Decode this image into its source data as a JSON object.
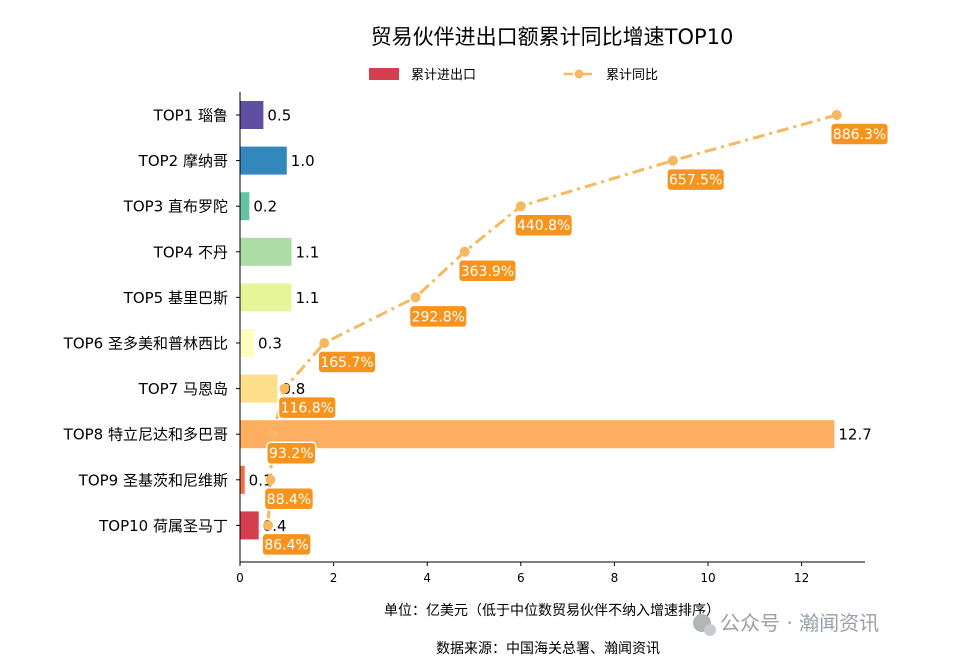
{
  "chart_data": {
    "type": "bar",
    "title": "贸易伙伴进出口额累计同比增速TOP10",
    "legend": [
      "累计进出口",
      "累计同比"
    ],
    "legend_position": "top-center",
    "categories": [
      "TOP1 瑙鲁",
      "TOP2 摩纳哥",
      "TOP3 直布罗陀",
      "TOP4 不丹",
      "TOP5 基里巴斯",
      "TOP6 圣多美和普林西比",
      "TOP7 马恩岛",
      "TOP8 特立尼达和多巴哥",
      "TOP9 圣基茨和尼维斯",
      "TOP10 荷属圣马丁"
    ],
    "series": [
      {
        "name": "累计进出口",
        "type": "bar",
        "orientation": "horizontal",
        "values": [
          0.5,
          1.0,
          0.2,
          1.1,
          1.1,
          0.3,
          0.8,
          12.7,
          0.1,
          0.4
        ],
        "value_labels": [
          "0.5",
          "1.0",
          "0.2",
          "1.1",
          "1.1",
          "0.3",
          "0.8",
          "12.7",
          "0.1",
          "0.4"
        ],
        "colors": [
          "#5e4fa2",
          "#3288bd",
          "#66c2a5",
          "#abdda4",
          "#e6f598",
          "#ffffbf",
          "#fee08b",
          "#fdae61",
          "#f46d43",
          "#d53e4f"
        ]
      },
      {
        "name": "累计同比",
        "type": "line",
        "style": "dash-dot",
        "color": "#f6b960",
        "x": [
          12.75,
          9.25,
          6.0,
          4.8,
          3.75,
          1.8,
          0.95,
          0.7,
          0.65,
          0.6
        ],
        "labels": [
          "886.3%",
          "657.5%",
          "440.8%",
          "363.9%",
          "292.8%",
          "165.7%",
          "116.8%",
          "93.2%",
          "88.4%",
          "86.4%"
        ],
        "label_color": "#f7941d"
      }
    ],
    "xlim": [
      0,
      13.3
    ],
    "xticks": [
      "0",
      "2",
      "4",
      "6",
      "8",
      "10",
      "12"
    ],
    "xlabel": "单位：亿美元（低于中位数贸易伙伴不纳入增速排序）",
    "source": "数据来源：中国海关总署、瀚闻资讯",
    "grid": false
  },
  "watermark": "公众号 · 瀚闻资讯"
}
